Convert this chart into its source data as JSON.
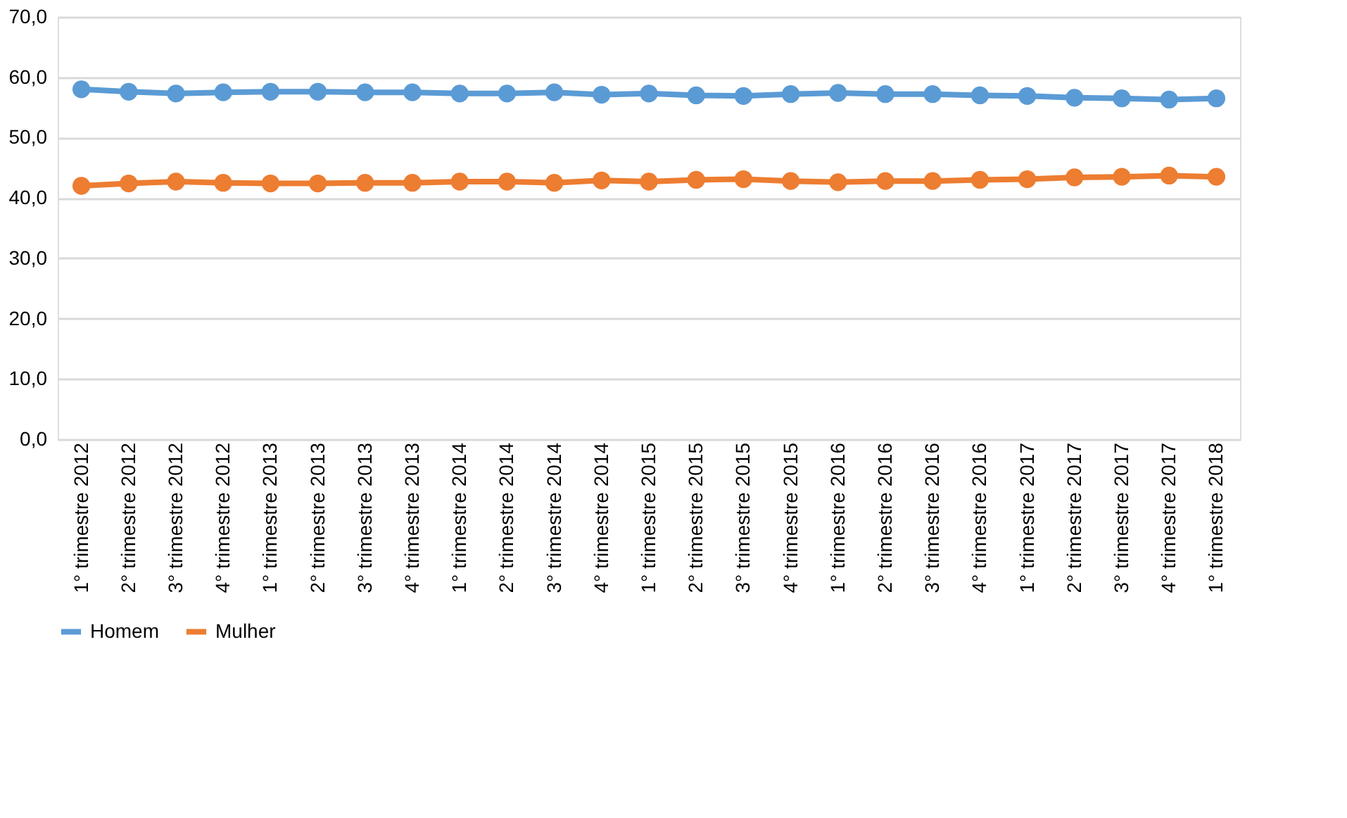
{
  "chart_data": {
    "type": "line",
    "categories": [
      "1° trimestre 2012",
      "2° trimestre 2012",
      "3° trimestre 2012",
      "4° trimestre 2012",
      "1° trimestre 2013",
      "2° trimestre 2013",
      "3° trimestre 2013",
      "4° trimestre 2013",
      "1° trimestre 2014",
      "2° trimestre 2014",
      "3° trimestre 2014",
      "4° trimestre 2014",
      "1° trimestre 2015",
      "2° trimestre 2015",
      "3° trimestre 2015",
      "4° trimestre 2015",
      "1° trimestre 2016",
      "2° trimestre 2016",
      "3° trimestre 2016",
      "4° trimestre 2016",
      "1° trimestre 2017",
      "2° trimestre 2017",
      "3° trimestre 2017",
      "4° trimestre 2017",
      "1° trimestre 2018"
    ],
    "series": [
      {
        "name": "Homem",
        "color": "#5b9bd5",
        "values": [
          58.0,
          57.6,
          57.3,
          57.5,
          57.6,
          57.6,
          57.5,
          57.5,
          57.3,
          57.3,
          57.5,
          57.1,
          57.3,
          57.0,
          56.9,
          57.2,
          57.4,
          57.2,
          57.2,
          57.0,
          56.9,
          56.6,
          56.5,
          56.3,
          56.5
        ]
      },
      {
        "name": "Mulher",
        "color": "#ed7d31",
        "values": [
          42.0,
          42.4,
          42.7,
          42.5,
          42.4,
          42.4,
          42.5,
          42.5,
          42.7,
          42.7,
          42.5,
          42.9,
          42.7,
          43.0,
          43.1,
          42.8,
          42.6,
          42.8,
          42.8,
          43.0,
          43.1,
          43.4,
          43.5,
          43.7,
          43.5
        ]
      }
    ],
    "ylim": [
      0,
      70
    ],
    "yticks": [
      {
        "value": 0,
        "label": "0,0"
      },
      {
        "value": 10,
        "label": "10,0"
      },
      {
        "value": 20,
        "label": "20,0"
      },
      {
        "value": 30,
        "label": "30,0"
      },
      {
        "value": 40,
        "label": "40,0"
      },
      {
        "value": 50,
        "label": "50,0"
      },
      {
        "value": 60,
        "label": "60,0"
      },
      {
        "value": 70,
        "label": "70,0"
      }
    ],
    "grid": "y",
    "legend": "bottom",
    "marker": "circle",
    "line_style": "solid"
  }
}
